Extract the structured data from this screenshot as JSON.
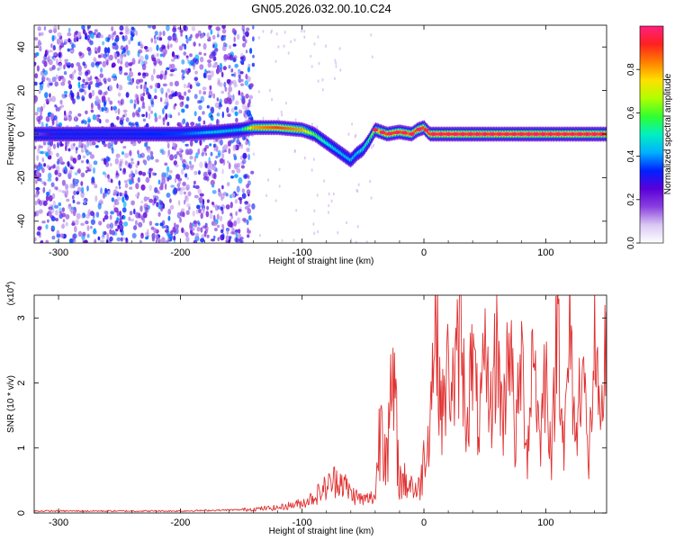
{
  "title": "GN05.2026.032.00.10.C24",
  "chart_data": [
    {
      "type": "heatmap",
      "xlabel": "Height of straight line (km)",
      "ylabel": "Frequency (Hz)",
      "xlim": [
        -320,
        150
      ],
      "ylim": [
        -50,
        50
      ],
      "x_ticks": [
        -300,
        -200,
        -100,
        0,
        100
      ],
      "y_ticks": [
        -40,
        -20,
        0,
        20,
        40
      ],
      "colorbar": {
        "label": "Normalized spectral amplitude",
        "range": [
          0,
          1
        ],
        "ticks": [
          "0.0",
          "0.2",
          "0.4",
          "0.6",
          "0.8"
        ],
        "colors": [
          "#ffffff",
          "#d9c8f2",
          "#8a40e0",
          "#5a00d8",
          "#0020ff",
          "#00b0ff",
          "#00f0c0",
          "#30ff30",
          "#b0ff00",
          "#ffe000",
          "#ff8000",
          "#ff2020",
          "#ff2080"
        ]
      },
      "ridge": {
        "x": [
          -320,
          -300,
          -250,
          -200,
          -170,
          -150,
          -140,
          -120,
          -100,
          -90,
          -80,
          -70,
          -65,
          -60,
          -55,
          -50,
          -45,
          -40,
          -35,
          -30,
          -20,
          -10,
          -5,
          0,
          5,
          10,
          50,
          100,
          150
        ],
        "frequency_hz": [
          0,
          0,
          0,
          0,
          1,
          2,
          3,
          3,
          2,
          0,
          -4,
          -8,
          -10,
          -12,
          -9,
          -7,
          -3,
          2,
          1,
          0,
          1,
          0,
          2,
          3,
          0,
          0,
          0,
          0,
          0
        ],
        "peak_amplitude": [
          0.15,
          0.3,
          0.3,
          0.35,
          0.45,
          0.45,
          0.8,
          0.9,
          0.8,
          0.6,
          0.5,
          0.45,
          0.45,
          0.45,
          0.45,
          0.5,
          0.55,
          0.7,
          0.85,
          0.9,
          0.9,
          0.85,
          0.9,
          0.9,
          0.95,
          0.95,
          0.95,
          0.95,
          0.95
        ]
      },
      "noise_band": {
        "x_range": [
          -320,
          -140
        ],
        "scattered_to": -40
      }
    },
    {
      "type": "line",
      "xlabel": "Height of straight line (km)",
      "ylabel": "SNR (10 * v/v)",
      "y_multiplier": "(x10",
      "y_multiplier_exp": "4",
      "y_multiplier_close": ")",
      "xlim": [
        -320,
        150
      ],
      "ylim": [
        0,
        3.35
      ],
      "x_ticks": [
        -300,
        -200,
        -100,
        0,
        100
      ],
      "y_ticks": [
        0,
        1,
        2,
        3
      ],
      "series": [
        {
          "color": "#e03030",
          "x": [
            -320,
            -250,
            -200,
            -150,
            -120,
            -100,
            -90,
            -80,
            -70,
            -60,
            -50,
            -40,
            -35,
            -30,
            -25,
            -20,
            -10,
            -5,
            0,
            5,
            8,
            10,
            15,
            20,
            25,
            30,
            35,
            40,
            45,
            50,
            55,
            60,
            65,
            70,
            75,
            80,
            85,
            90,
            95,
            100,
            105,
            110,
            115,
            120,
            125,
            130,
            135,
            140,
            145,
            150
          ],
          "y": [
            0.03,
            0.03,
            0.03,
            0.05,
            0.08,
            0.15,
            0.25,
            0.4,
            0.55,
            0.3,
            0.2,
            0.25,
            1.6,
            1.0,
            1.9,
            0.5,
            0.45,
            0.3,
            0.8,
            1.4,
            2.7,
            2.8,
            1.5,
            2.2,
            1.9,
            2.8,
            1.4,
            2.4,
            1.3,
            2.2,
            1.6,
            2.6,
            1.3,
            3.05,
            1.0,
            2.4,
            0.9,
            2.8,
            1.0,
            2.3,
            0.8,
            3.3,
            0.9,
            2.8,
            1.0,
            2.7,
            0.6,
            2.6,
            1.0,
            3.0
          ]
        }
      ]
    }
  ]
}
